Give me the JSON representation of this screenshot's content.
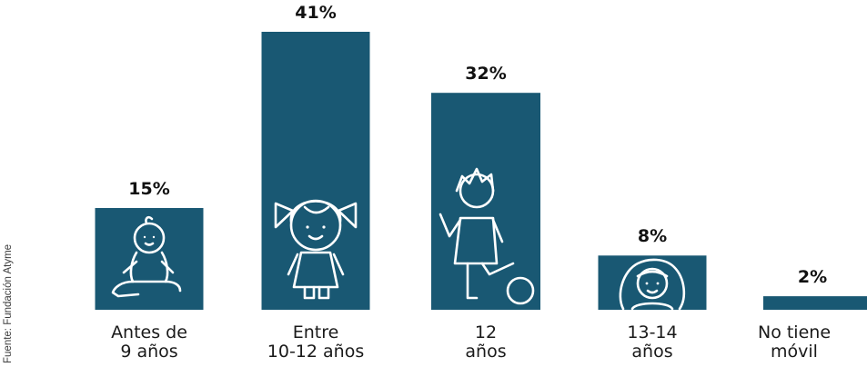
{
  "source": "Fuente: Fundación Atyme",
  "chart_data": {
    "type": "bar",
    "title": "",
    "xlabel": "",
    "ylabel": "",
    "ylim": [
      0,
      41
    ],
    "bar_color": "#195873",
    "categories": [
      {
        "line1": "Antes de",
        "line2": "9 años"
      },
      {
        "line1": "Entre",
        "line2": "10-12 años"
      },
      {
        "line1": "12",
        "line2": "años"
      },
      {
        "line1": "13-14",
        "line2": "años"
      },
      {
        "line1": "No tiene",
        "line2": "móvil"
      }
    ],
    "values": [
      15,
      41,
      32,
      8,
      2
    ],
    "value_labels": [
      "15%",
      "41%",
      "32%",
      "8%",
      "2%"
    ],
    "icons": [
      "baby-icon",
      "girl-icon",
      "boy-soccer-icon",
      "teen-girl-icon",
      ""
    ]
  }
}
